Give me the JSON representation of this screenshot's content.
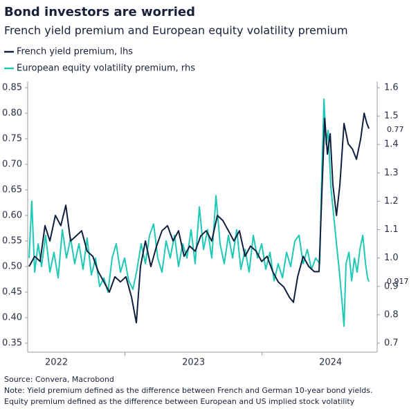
{
  "chart_data": {
    "type": "line",
    "title": "Bond investors are worried",
    "subtitle": "French yield premium and European equity volatility premium",
    "xlim": [
      2022.29,
      2024.84
    ],
    "xticks": [
      {
        "value": 2022.5,
        "label": "2022"
      },
      {
        "value": 2023.5,
        "label": "2023"
      },
      {
        "value": 2024.5,
        "label": "2024"
      }
    ],
    "ylim": [
      0.35,
      0.85
    ],
    "yticks": [
      {
        "value": 0.35,
        "label": "0.35"
      },
      {
        "value": 0.4,
        "label": "0.40"
      },
      {
        "value": 0.45,
        "label": "0.45"
      },
      {
        "value": 0.5,
        "label": "0.50"
      },
      {
        "value": 0.55,
        "label": "0.55"
      },
      {
        "value": 0.6,
        "label": "0.60"
      },
      {
        "value": 0.65,
        "label": "0.65"
      },
      {
        "value": 0.7,
        "label": "0.70"
      },
      {
        "value": 0.75,
        "label": "0.75"
      },
      {
        "value": 0.8,
        "label": "0.80"
      },
      {
        "value": 0.85,
        "label": "0.85"
      }
    ],
    "y2lim": [
      0.7,
      1.6
    ],
    "y2ticks": [
      {
        "value": 0.7,
        "label": "0.7"
      },
      {
        "value": 0.8,
        "label": "0.8"
      },
      {
        "value": 0.9,
        "label": "0.9"
      },
      {
        "value": 1.0,
        "label": "1.0"
      },
      {
        "value": 1.1,
        "label": "1.1"
      },
      {
        "value": 1.2,
        "label": "1.2"
      },
      {
        "value": 1.3,
        "label": "1.3"
      },
      {
        "value": 1.4,
        "label": "1.4"
      },
      {
        "value": 1.5,
        "label": "1.5"
      },
      {
        "value": 1.6,
        "label": "1.6"
      }
    ],
    "series": [
      {
        "name": "French yield premium, lhs",
        "color": "#0f1f3d",
        "end_label": "0.77",
        "x": [
          2022.3,
          2022.341,
          2022.381,
          2022.416,
          2022.452,
          2022.492,
          2022.532,
          2022.568,
          2022.603,
          2022.644,
          2022.684,
          2022.724,
          2022.765,
          2022.805,
          2022.846,
          2022.886,
          2022.926,
          2022.967,
          2023.007,
          2023.048,
          2023.083,
          2023.113,
          2023.149,
          2023.189,
          2023.23,
          2023.27,
          2023.31,
          2023.351,
          2023.391,
          2023.431,
          2023.472,
          2023.512,
          2023.553,
          2023.593,
          2023.633,
          2023.674,
          2023.714,
          2023.755,
          2023.795,
          2023.835,
          2023.876,
          2023.916,
          2023.957,
          2023.997,
          2024.037,
          2024.078,
          2024.118,
          2024.159,
          2024.199,
          2024.229,
          2024.26,
          2024.3,
          2024.341,
          2024.381,
          2024.416,
          2024.436,
          2024.457,
          2024.477,
          2024.497,
          2024.517,
          2024.543,
          2024.568,
          2024.598,
          2024.629,
          2024.659,
          2024.689,
          2024.72,
          2024.745,
          2024.765,
          2024.78
        ],
        "values": [
          0.5,
          0.52,
          0.51,
          0.58,
          0.55,
          0.6,
          0.58,
          0.62,
          0.55,
          0.56,
          0.57,
          0.53,
          0.52,
          0.49,
          0.47,
          0.45,
          0.48,
          0.47,
          0.48,
          0.44,
          0.39,
          0.5,
          0.55,
          0.5,
          0.54,
          0.57,
          0.58,
          0.55,
          0.57,
          0.52,
          0.54,
          0.53,
          0.56,
          0.57,
          0.55,
          0.6,
          0.59,
          0.57,
          0.55,
          0.57,
          0.52,
          0.54,
          0.53,
          0.51,
          0.52,
          0.49,
          0.47,
          0.46,
          0.44,
          0.43,
          0.48,
          0.52,
          0.5,
          0.49,
          0.49,
          0.64,
          0.79,
          0.72,
          0.76,
          0.66,
          0.6,
          0.66,
          0.78,
          0.74,
          0.73,
          0.71,
          0.75,
          0.8,
          0.78,
          0.77
        ]
      },
      {
        "name": "European equity volatility premium, rhs",
        "color": "#1ec8b4",
        "axis": "y2",
        "end_label": "0.917",
        "x": [
          2022.3,
          2022.32,
          2022.341,
          2022.366,
          2022.391,
          2022.421,
          2022.452,
          2022.482,
          2022.512,
          2022.543,
          2022.573,
          2022.603,
          2022.633,
          2022.664,
          2022.694,
          2022.724,
          2022.755,
          2022.785,
          2022.815,
          2022.846,
          2022.876,
          2022.906,
          2022.936,
          2022.967,
          2022.997,
          2023.027,
          2023.058,
          2023.088,
          2023.118,
          2023.149,
          2023.179,
          2023.209,
          2023.239,
          2023.27,
          2023.3,
          2023.33,
          2023.361,
          2023.391,
          2023.421,
          2023.452,
          2023.482,
          2023.512,
          2023.543,
          2023.573,
          2023.603,
          2023.633,
          2023.664,
          2023.694,
          2023.724,
          2023.755,
          2023.785,
          2023.815,
          2023.846,
          2023.876,
          2023.906,
          2023.936,
          2023.967,
          2023.997,
          2024.027,
          2024.058,
          2024.088,
          2024.118,
          2024.149,
          2024.179,
          2024.209,
          2024.239,
          2024.27,
          2024.3,
          2024.33,
          2024.361,
          2024.391,
          2024.421,
          2024.436,
          2024.452,
          2024.467,
          2024.482,
          2024.502,
          2024.523,
          2024.543,
          2024.563,
          2024.583,
          2024.598,
          2024.613,
          2024.634,
          2024.654,
          2024.674,
          2024.694,
          2024.714,
          2024.735,
          2024.755,
          2024.77,
          2024.78
        ],
        "values": [
          1.0,
          1.2,
          0.95,
          1.05,
          0.97,
          1.08,
          0.95,
          1.02,
          0.93,
          1.1,
          1.0,
          1.07,
          0.98,
          1.05,
          0.96,
          1.07,
          0.94,
          1.0,
          0.9,
          0.93,
          0.88,
          1.0,
          1.05,
          0.95,
          1.0,
          0.92,
          0.89,
          0.96,
          1.05,
          0.98,
          1.08,
          1.12,
          1.0,
          0.95,
          1.06,
          1.0,
          1.08,
          0.97,
          1.05,
          1.0,
          1.1,
          0.98,
          1.18,
          1.03,
          1.1,
          1.0,
          1.22,
          1.05,
          0.98,
          1.08,
          1.0,
          1.1,
          0.96,
          1.03,
          0.95,
          1.08,
          1.0,
          1.05,
          0.96,
          1.02,
          0.92,
          0.98,
          0.93,
          1.02,
          0.97,
          1.06,
          1.08,
          0.98,
          1.03,
          0.96,
          1.0,
          0.98,
          1.3,
          1.56,
          1.4,
          1.45,
          1.25,
          1.15,
          1.05,
          0.96,
          0.85,
          0.76,
          0.98,
          1.02,
          0.92,
          1.0,
          0.95,
          1.03,
          1.08,
          0.98,
          0.93,
          0.917
        ]
      }
    ],
    "notes": [
      "Source: Convera, Macrobond",
      "Note: Yield premium defined as the difference between French and German 10-year bond yields.",
      "Equity premium defined as the difference between European and US implied stock volatility"
    ]
  }
}
